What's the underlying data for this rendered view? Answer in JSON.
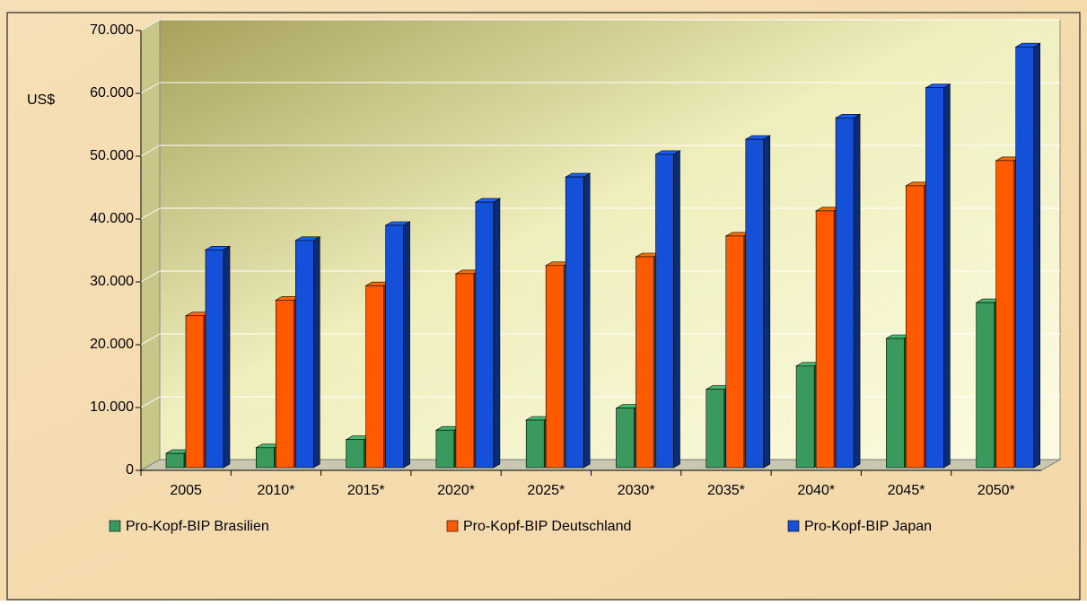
{
  "chart_data": {
    "type": "bar3d",
    "y_axis_label": "US$",
    "categories": [
      "2005",
      "2010*",
      "2015*",
      "2020*",
      "2025*",
      "2030*",
      "2035*",
      "2040*",
      "2045*",
      "2050*"
    ],
    "series": [
      {
        "name": "Pro-Kopf-BIP Brasilien",
        "color": "#3a9a5e",
        "values": [
          2700,
          3600,
          4900,
          6400,
          8000,
          9900,
          12900,
          16600,
          21000,
          26700
        ]
      },
      {
        "name": "Pro-Kopf-BIP Deutschland",
        "color": "#ff5a00",
        "values": [
          24600,
          27100,
          29400,
          31300,
          32600,
          34000,
          37300,
          41300,
          45300,
          49300
        ]
      },
      {
        "name": "Pro-Kopf-BIP Japan",
        "color": "#1450d8",
        "values": [
          35100,
          36600,
          39000,
          42700,
          46700,
          50300,
          52700,
          56100,
          60900,
          67400
        ]
      }
    ],
    "ylim": [
      0,
      70000
    ],
    "yticks": [
      0,
      {
        "value": 10000,
        "label": "10.000"
      },
      {
        "value": 20000,
        "label": "20.000"
      },
      {
        "value": 30000,
        "label": "30.000"
      },
      {
        "value": 40000,
        "label": "40.000"
      },
      {
        "value": 50000,
        "label": "50.000"
      },
      {
        "value": 60000,
        "label": "60.000"
      },
      {
        "value": 70000,
        "label": "70.000"
      }
    ],
    "grid": true
  }
}
